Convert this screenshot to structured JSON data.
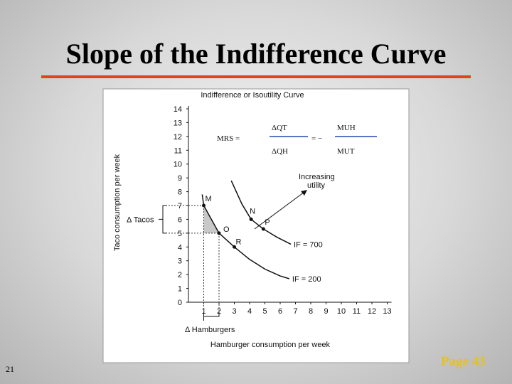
{
  "slide": {
    "title": "Slope of the Indifference Curve",
    "number": "21",
    "footer": "Page 43"
  },
  "chart_data": {
    "type": "line",
    "title": "Indifference or Isoutility Curve",
    "x_label": "Hamburger consumption per week",
    "y_label": "Taco consumption per week",
    "xlim": [
      0,
      13
    ],
    "ylim": [
      0,
      14
    ],
    "xticks": [
      1,
      2,
      3,
      4,
      5,
      6,
      7,
      8,
      9,
      10,
      11,
      12,
      13
    ],
    "yticks": [
      0,
      1,
      2,
      3,
      4,
      5,
      6,
      7,
      8,
      9,
      10,
      11,
      12,
      13,
      14
    ],
    "series": [
      {
        "name": "IF = 700",
        "color": "#111111",
        "x": [
          2.8,
          3.5,
          4.1,
          4.9,
          5.8,
          6.7
        ],
        "values": [
          8.8,
          7.1,
          6,
          5.3,
          4.7,
          4.2
        ]
      },
      {
        "name": "IF = 200",
        "color": "#111111",
        "x": [
          0.9,
          1,
          2,
          3,
          4,
          5,
          6,
          6.6
        ],
        "values": [
          7.8,
          7,
          5,
          4,
          3.1,
          2.4,
          1.9,
          1.7
        ]
      }
    ],
    "points": [
      {
        "label": "M",
        "x": 1,
        "y": 7
      },
      {
        "label": "O",
        "x": 2,
        "y": 5
      },
      {
        "label": "R",
        "x": 3,
        "y": 4
      },
      {
        "label": "N",
        "x": 4.1,
        "y": 6
      },
      {
        "label": "P",
        "x": 4.9,
        "y": 5.3
      }
    ],
    "annotations": {
      "formula_left": "MRS =",
      "num1": "ΔQT",
      "den1": "ΔQH",
      "formula_mid": "= −",
      "num2": "MUH",
      "den2": "MUT",
      "utility": [
        "Increasing",
        "utility"
      ],
      "delta_tacos": "Δ Tacos",
      "delta_hamburgers": "Δ Hamburgers"
    }
  }
}
